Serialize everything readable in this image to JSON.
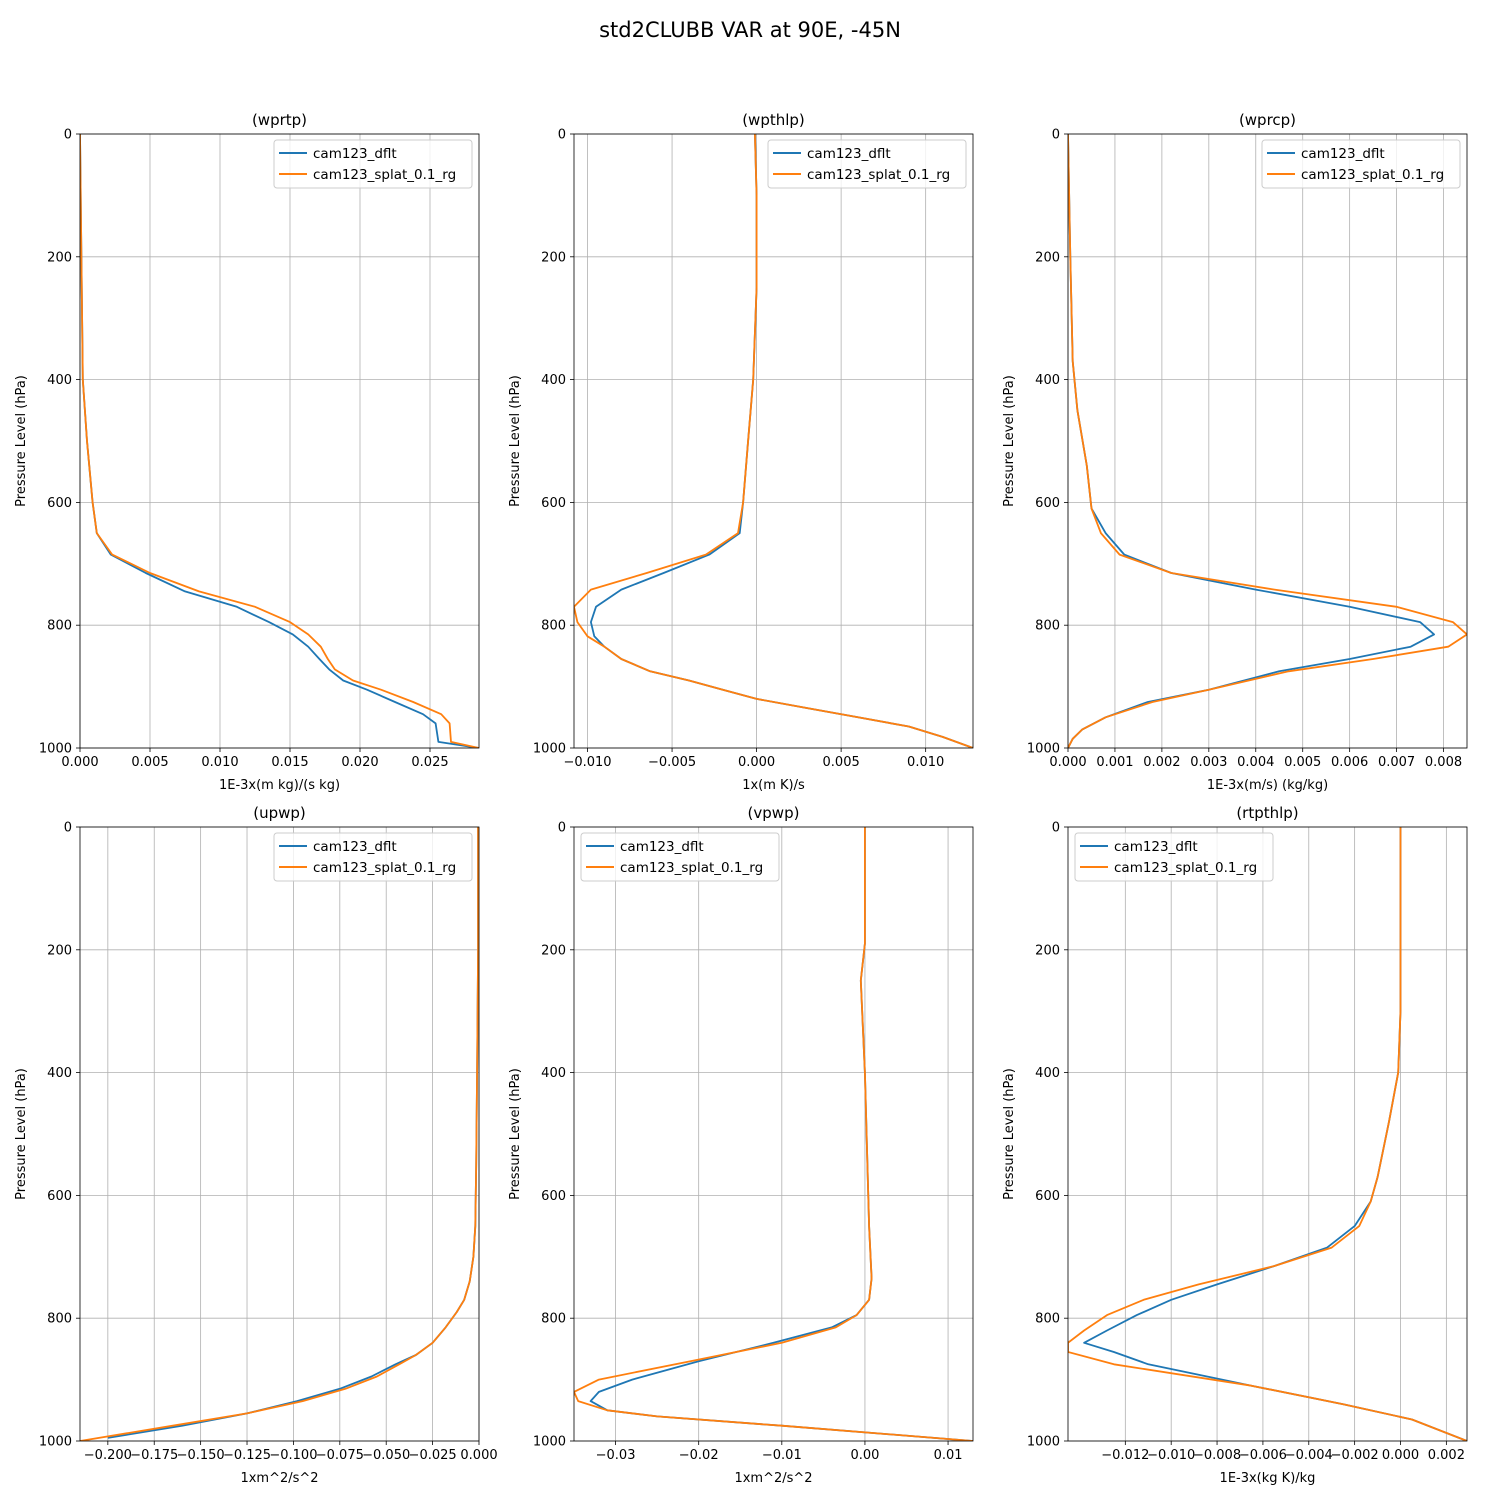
{
  "figure_title": "std2CLUBB VAR at 90E, -45N",
  "colors": {
    "cam123_dflt": "#1f77b4",
    "cam123_splat_0.1_rg": "#ff7f0e"
  },
  "chart_data": [
    {
      "type": "line",
      "title": "(wprtp)",
      "xlabel": "1E-3x(m kg)/(s kg)",
      "ylabel": "Pressure Level (hPa)",
      "xlim": [
        0,
        0.0285
      ],
      "ylim": [
        1000,
        0
      ],
      "xticks": [
        0,
        0.005,
        0.01,
        0.015,
        0.02,
        0.025
      ],
      "xtick_labels": [
        "0.000",
        "0.005",
        "0.010",
        "0.015",
        "0.020",
        "0.025"
      ],
      "yticks": [
        0,
        200,
        400,
        600,
        800,
        1000
      ],
      "ytick_labels": [
        "0",
        "200",
        "400",
        "600",
        "800",
        "1000"
      ],
      "legend": {
        "location": "upper right",
        "entries": [
          "cam123_dflt",
          "cam123_splat_0.1_rg"
        ]
      },
      "series": [
        {
          "name": "cam123_dflt",
          "x": [
            0,
            0.0001,
            0.0002,
            0.0005,
            0.0009,
            0.0012,
            0.0022,
            0.0047,
            0.0075,
            0.0112,
            0.0135,
            0.0152,
            0.0163,
            0.0171,
            0.0178,
            0.0188,
            0.0205,
            0.0225,
            0.0245,
            0.0254,
            0.0255,
            0.0256,
            0.0285
          ],
          "y": [
            0,
            200,
            400,
            500,
            600,
            650,
            685,
            715,
            745,
            770,
            795,
            815,
            835,
            855,
            872,
            890,
            905,
            925,
            945,
            960,
            975,
            990,
            1000
          ]
        },
        {
          "name": "cam123_splat_0.1_rg",
          "x": [
            0,
            0.0001,
            0.0002,
            0.0005,
            0.0009,
            0.0012,
            0.0023,
            0.005,
            0.0085,
            0.0125,
            0.015,
            0.0163,
            0.0172,
            0.0177,
            0.0182,
            0.0195,
            0.0215,
            0.0238,
            0.0258,
            0.0264,
            0.0265,
            0.0285
          ],
          "y": [
            0,
            200,
            400,
            500,
            600,
            650,
            685,
            715,
            745,
            770,
            795,
            815,
            835,
            855,
            872,
            890,
            905,
            925,
            945,
            960,
            990,
            1000
          ]
        }
      ]
    },
    {
      "type": "line",
      "title": "(wpthlp)",
      "xlabel": "1x(m K)/s",
      "ylabel": "Pressure Level (hPa)",
      "xlim": [
        -0.0108,
        0.0128
      ],
      "ylim": [
        1000,
        0
      ],
      "xticks": [
        -0.01,
        -0.005,
        0,
        0.005,
        0.01
      ],
      "xtick_labels": [
        "−0.010",
        "−0.005",
        "0.000",
        "0.005",
        "0.010"
      ],
      "yticks": [
        0,
        200,
        400,
        600,
        800,
        1000
      ],
      "ytick_labels": [
        "0",
        "200",
        "400",
        "600",
        "800",
        "1000"
      ],
      "legend": {
        "location": "upper right",
        "entries": [
          "cam123_dflt",
          "cam123_splat_0.1_rg"
        ]
      },
      "series": [
        {
          "name": "cam123_dflt",
          "x": [
            -0.0001,
            0.0,
            0.0,
            -0.0002,
            -0.0005,
            -0.0008,
            -0.001,
            -0.0028,
            -0.0055,
            -0.008,
            -0.0095,
            -0.0098,
            -0.0096,
            -0.009,
            -0.008,
            -0.0063,
            -0.004,
            -0.002,
            0.0,
            0.003,
            0.006,
            0.009,
            0.011,
            0.0128
          ],
          "y": [
            0,
            100,
            250,
            400,
            500,
            600,
            650,
            685,
            715,
            742,
            770,
            795,
            818,
            835,
            855,
            875,
            890,
            905,
            920,
            935,
            950,
            965,
            982,
            1000
          ]
        },
        {
          "name": "cam123_splat_0.1_rg",
          "x": [
            -0.0001,
            0.0,
            0.0,
            -0.0002,
            -0.0005,
            -0.0008,
            -0.0011,
            -0.003,
            -0.0065,
            -0.0098,
            -0.0108,
            -0.0106,
            -0.01,
            -0.009,
            -0.008,
            -0.0063,
            -0.004,
            -0.002,
            0.0,
            0.003,
            0.006,
            0.009,
            0.011,
            0.0128
          ],
          "y": [
            0,
            100,
            250,
            400,
            500,
            600,
            650,
            685,
            715,
            742,
            770,
            795,
            818,
            835,
            855,
            875,
            890,
            905,
            920,
            935,
            950,
            965,
            982,
            1000
          ]
        }
      ]
    },
    {
      "type": "line",
      "title": "(wprcp)",
      "xlabel": "1E-3x(m/s) (kg/kg)",
      "ylabel": "Pressure Level (hPa)",
      "xlim": [
        0,
        0.0085
      ],
      "ylim": [
        1000,
        0
      ],
      "xticks": [
        0,
        0.001,
        0.002,
        0.003,
        0.004,
        0.005,
        0.006,
        0.007,
        0.008
      ],
      "xtick_labels": [
        "0.000",
        "0.001",
        "0.002",
        "0.003",
        "0.004",
        "0.005",
        "0.006",
        "0.007",
        "0.008"
      ],
      "yticks": [
        0,
        200,
        400,
        600,
        800,
        1000
      ],
      "ytick_labels": [
        "0",
        "200",
        "400",
        "600",
        "800",
        "1000"
      ],
      "legend": {
        "location": "upper right",
        "entries": [
          "cam123_dflt",
          "cam123_splat_0.1_rg"
        ]
      },
      "series": [
        {
          "name": "cam123_dflt",
          "x": [
            0,
            5e-05,
            0.0001,
            0.0002,
            0.0004,
            0.0005,
            0.0008,
            0.0012,
            0.0022,
            0.004,
            0.006,
            0.0075,
            0.0078,
            0.0073,
            0.006,
            0.0045,
            0.003,
            0.0017,
            0.0008,
            0.0003,
            0.0001,
            0.0
          ],
          "y": [
            0,
            200,
            370,
            450,
            540,
            610,
            650,
            685,
            715,
            742,
            770,
            795,
            815,
            835,
            855,
            875,
            905,
            925,
            950,
            970,
            985,
            1000
          ]
        },
        {
          "name": "cam123_splat_0.1_rg",
          "x": [
            0,
            5e-05,
            0.0001,
            0.0002,
            0.0004,
            0.0005,
            0.0007,
            0.0011,
            0.0022,
            0.0044,
            0.007,
            0.0082,
            0.0085,
            0.0081,
            0.0065,
            0.0047,
            0.003,
            0.0018,
            0.0008,
            0.0003,
            0.0001,
            0.0
          ],
          "y": [
            0,
            200,
            370,
            450,
            540,
            610,
            650,
            685,
            715,
            742,
            770,
            795,
            815,
            835,
            855,
            875,
            905,
            925,
            950,
            970,
            985,
            1000
          ]
        }
      ]
    },
    {
      "type": "line",
      "title": "(upwp)",
      "xlabel": "1xm^2/s^2",
      "ylabel": "Pressure Level (hPa)",
      "xlim": [
        -0.215,
        0
      ],
      "ylim": [
        1000,
        0
      ],
      "xticks": [
        -0.2,
        -0.175,
        -0.15,
        -0.125,
        -0.1,
        -0.075,
        -0.05,
        -0.025,
        0
      ],
      "xtick_labels": [
        "−0.200",
        "−0.175",
        "−0.150",
        "−0.125",
        "−0.100",
        "−0.075",
        "−0.050",
        "−0.025",
        "0.000"
      ],
      "yticks": [
        0,
        200,
        400,
        600,
        800,
        1000
      ],
      "ytick_labels": [
        "0",
        "200",
        "400",
        "600",
        "800",
        "1000"
      ],
      "legend": {
        "location": "upper right",
        "entries": [
          "cam123_dflt",
          "cam123_splat_0.1_rg"
        ]
      },
      "series": [
        {
          "name": "cam123_dflt",
          "x": [
            -0.0005,
            -0.0005,
            -0.001,
            -0.0015,
            -0.002,
            -0.003,
            -0.005,
            -0.008,
            -0.012,
            -0.018,
            -0.025,
            -0.034,
            -0.045,
            -0.058,
            -0.075,
            -0.098,
            -0.125,
            -0.16,
            -0.2
          ],
          "y": [
            0,
            200,
            400,
            550,
            650,
            700,
            740,
            770,
            790,
            815,
            840,
            860,
            875,
            895,
            915,
            935,
            955,
            975,
            995
          ]
        },
        {
          "name": "cam123_splat_0.1_rg",
          "x": [
            -0.0005,
            -0.0005,
            -0.001,
            -0.0015,
            -0.002,
            -0.003,
            -0.005,
            -0.008,
            -0.012,
            -0.018,
            -0.025,
            -0.034,
            -0.043,
            -0.055,
            -0.072,
            -0.095,
            -0.125,
            -0.165,
            -0.215
          ],
          "y": [
            0,
            200,
            400,
            550,
            650,
            700,
            740,
            770,
            790,
            815,
            840,
            860,
            875,
            895,
            915,
            935,
            955,
            975,
            1000
          ]
        }
      ]
    },
    {
      "type": "line",
      "title": "(vpwp)",
      "xlabel": "1xm^2/s^2",
      "ylabel": "Pressure Level (hPa)",
      "xlim": [
        -0.035,
        0.013
      ],
      "ylim": [
        1000,
        0
      ],
      "xticks": [
        -0.03,
        -0.02,
        -0.01,
        0,
        0.01
      ],
      "xtick_labels": [
        "−0.03",
        "−0.02",
        "−0.01",
        "0.00",
        "0.01"
      ],
      "yticks": [
        0,
        200,
        400,
        600,
        800,
        1000
      ],
      "ytick_labels": [
        "0",
        "200",
        "400",
        "600",
        "800",
        "1000"
      ],
      "legend": {
        "location": "upper left",
        "entries": [
          "cam123_dflt",
          "cam123_splat_0.1_rg"
        ]
      },
      "series": [
        {
          "name": "cam123_dflt",
          "x": [
            0,
            0,
            -0.0005,
            0.0,
            0.0005,
            0.0008,
            0.0005,
            -0.001,
            -0.004,
            -0.011,
            -0.02,
            -0.028,
            -0.032,
            -0.033,
            -0.031,
            -0.025,
            -0.01,
            0.013
          ],
          "y": [
            0,
            190,
            250,
            400,
            650,
            735,
            770,
            795,
            815,
            840,
            870,
            900,
            920,
            935,
            950,
            960,
            975,
            1000
          ]
        },
        {
          "name": "cam123_splat_0.1_rg",
          "x": [
            0,
            0,
            -0.0005,
            0.0,
            0.0005,
            0.0008,
            0.0005,
            -0.001,
            -0.0035,
            -0.01,
            -0.021,
            -0.032,
            -0.035,
            -0.0345,
            -0.031,
            -0.025,
            -0.01,
            0.013
          ],
          "y": [
            0,
            190,
            250,
            400,
            650,
            735,
            770,
            795,
            815,
            840,
            870,
            900,
            920,
            935,
            950,
            960,
            975,
            1000
          ]
        }
      ]
    },
    {
      "type": "line",
      "title": "(rtpthlp)",
      "xlabel": "1E-3x(kg K)/kg",
      "ylabel": "Pressure Level (hPa)",
      "xlim": [
        -0.0145,
        0.0029
      ],
      "ylim": [
        1000,
        0
      ],
      "xticks": [
        -0.012,
        -0.01,
        -0.008,
        -0.006,
        -0.004,
        -0.002,
        0,
        0.002
      ],
      "xtick_labels": [
        "−0.012",
        "−0.010",
        "−0.008",
        "−0.006",
        "−0.004",
        "−0.002",
        "0.000",
        "0.002"
      ],
      "yticks": [
        0,
        200,
        400,
        600,
        800,
        1000
      ],
      "ytick_labels": [
        "0",
        "200",
        "400",
        "600",
        "800",
        "1000"
      ],
      "legend": {
        "location": "upper left",
        "entries": [
          "cam123_dflt",
          "cam123_splat_0.1_rg"
        ]
      },
      "series": [
        {
          "name": "cam123_dflt",
          "x": [
            0,
            0,
            -0.0001,
            -0.0005,
            -0.001,
            -0.0013,
            -0.002,
            -0.0032,
            -0.0055,
            -0.008,
            -0.01,
            -0.0115,
            -0.0128,
            -0.0138,
            -0.0125,
            -0.011,
            -0.0065,
            -0.0025,
            0.0005,
            0.0029
          ],
          "y": [
            0,
            300,
            400,
            480,
            570,
            610,
            650,
            685,
            715,
            745,
            770,
            795,
            820,
            840,
            855,
            875,
            910,
            940,
            965,
            1000
          ]
        },
        {
          "name": "cam123_splat_0.1_rg",
          "x": [
            0,
            0,
            -0.0001,
            -0.0005,
            -0.001,
            -0.0013,
            -0.0018,
            -0.003,
            -0.0055,
            -0.0088,
            -0.0112,
            -0.0128,
            -0.0138,
            -0.0145,
            -0.0145,
            -0.0125,
            -0.0065,
            -0.0025,
            0.0005,
            0.0029
          ],
          "y": [
            0,
            300,
            400,
            480,
            570,
            610,
            650,
            685,
            715,
            745,
            770,
            795,
            820,
            840,
            855,
            875,
            910,
            940,
            965,
            1000
          ]
        }
      ]
    }
  ]
}
